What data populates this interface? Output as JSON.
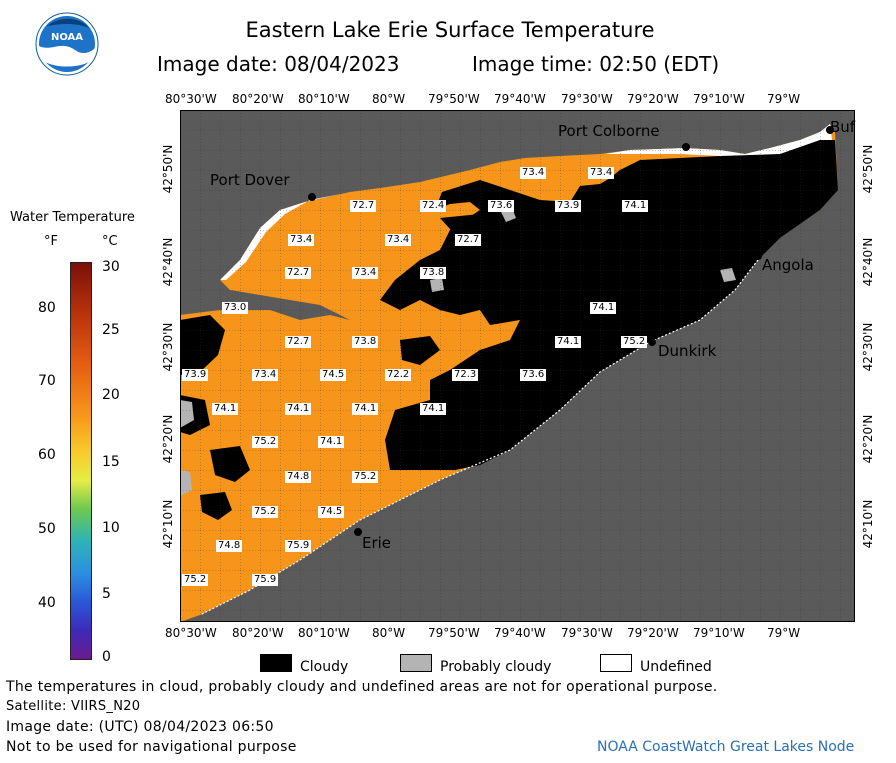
{
  "header": {
    "title": "Eastern Lake Erie Surface Temperature",
    "image_date": "Image date: 08/04/2023",
    "image_time": "Image time: 02:50 (EDT)"
  },
  "logo": {
    "text": "NOAA"
  },
  "colorbar": {
    "title": "Water Temperature",
    "unit_f": "°F",
    "unit_c": "°C",
    "f_ticks": [
      "80",
      "70",
      "60",
      "50",
      "40"
    ],
    "c_ticks": [
      "30",
      "25",
      "20",
      "15",
      "10",
      "5",
      "0"
    ]
  },
  "axes": {
    "lon_labels": [
      "80°30'W",
      "80°20'W",
      "80°10'W",
      "80°W",
      "79°50'W",
      "79°40'W",
      "79°30'W",
      "79°20'W",
      "79°10'W",
      "79°W"
    ],
    "lat_labels": [
      "42°50'N",
      "42°40'N",
      "42°30'N",
      "42°20'N",
      "42°10'N"
    ]
  },
  "places": [
    "Port Colborne",
    "Buf",
    "Port Dover",
    "Angola",
    "Dunkirk",
    "Erie"
  ],
  "temperature_labels": [
    "73.4",
    "73.4",
    "72.7",
    "72.4",
    "73.6",
    "73.9",
    "74.1",
    "73.4",
    "73.4",
    "72.7",
    "72.7",
    "73.4",
    "73.8",
    "73.0",
    "74.1",
    "72.7",
    "73.8",
    "74.1",
    "75.2",
    "73.9",
    "73.4",
    "74.5",
    "72.2",
    "72.3",
    "73.6",
    "74.1",
    "74.1",
    "74.1",
    "74.1",
    "75.2",
    "74.1",
    "74.8",
    "75.2",
    "75.2",
    "74.5",
    "74.8",
    "75.9",
    "75.2",
    "75.9"
  ],
  "legend": {
    "cloudy": "Cloudy",
    "probably_cloudy": "Probably cloudy",
    "undefined": "Undefined"
  },
  "footer": {
    "note": "The temperatures in cloud, probably cloudy and undefined areas are not for operational purpose.",
    "satellite": "Satellite: VIIRS_N20",
    "utc_date": "Image date: (UTC) 08/04/2023  06:50",
    "nav": "Not to be used for navigational purpose",
    "credit": "NOAA CoastWatch Great Lakes Node"
  },
  "colors": {
    "land": "#5a5a5a",
    "water": "#f7941a",
    "cloud": "#000000",
    "probably_cloudy": "#b4b4b4",
    "undefined": "#ffffff"
  }
}
